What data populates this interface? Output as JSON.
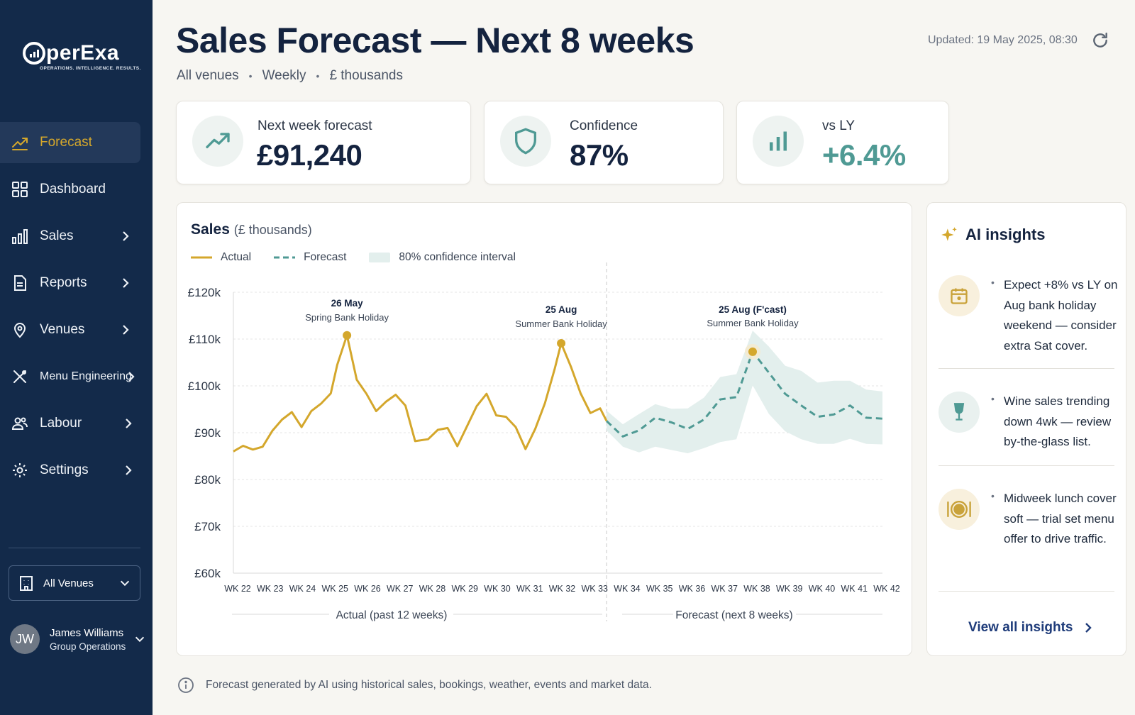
{
  "sidebar": {
    "logo": {
      "text": "perExa",
      "tagline": "OPERATIONS. INTELLIGENCE. RESULTS."
    },
    "items": [
      {
        "label": "Forecast",
        "icon": "trending-up-icon",
        "active": true
      },
      {
        "label": "Dashboard",
        "icon": "grid-icon"
      },
      {
        "label": "Sales",
        "icon": "bar-chart-icon"
      },
      {
        "label": "Reports",
        "icon": "document-icon"
      },
      {
        "label": "Venues",
        "icon": "map-pin-icon"
      },
      {
        "label": "Menu Engineering",
        "icon": "utensils-icon"
      },
      {
        "label": "Labour",
        "icon": "users-icon"
      },
      {
        "label": "Settings",
        "icon": "gear-icon"
      }
    ],
    "venue_select": "All Venues",
    "user": {
      "initials": "JW",
      "name": "James Williams",
      "role": "Group Operations"
    }
  },
  "header": {
    "title": "Sales Forecast — Next 8 weeks",
    "subtitle": [
      "All venues",
      "Weekly",
      "£ thousands"
    ],
    "updated": "Updated: 19 May 2025, 08:30"
  },
  "kpis": [
    {
      "label": "Next week forecast",
      "value": "£91,240",
      "icon": "trending-up-icon"
    },
    {
      "label": "Confidence",
      "value": "87%",
      "icon": "shield-icon"
    },
    {
      "label": "vs LY",
      "value": "+6.4%",
      "icon": "bar-chart-icon"
    }
  ],
  "chart": {
    "title": "Sales",
    "title_unit": "(£ thousands)",
    "legend": [
      "Actual",
      "Forecast",
      "80% confidence interval"
    ],
    "section_actual": "Actual (past 12 weeks)",
    "section_forecast": "Forecast (next 8 weeks)",
    "annotations": [
      {
        "title": "26 May",
        "sub": "Spring Bank Holiday"
      },
      {
        "title": "25 Aug",
        "sub": "Summer Bank Holiday"
      },
      {
        "title": "25 Aug (F'cast)",
        "sub": "Summer Bank Holiday"
      }
    ]
  },
  "chart_data": {
    "type": "line",
    "ylim": [
      60,
      120
    ],
    "yticks": [
      "£120k",
      "£110k",
      "£100k",
      "£90k",
      "£80k",
      "£70k",
      "£60k"
    ],
    "ytick_values": [
      120,
      110,
      100,
      90,
      80,
      70,
      60
    ],
    "categories": [
      "WK 22",
      "WK 23",
      "WK 24",
      "WK 25",
      "WK 26",
      "WK 27",
      "WK 28",
      "WK 29",
      "WK 30",
      "WK 31",
      "WK 32",
      "WK 33",
      "WK 34",
      "WK 35",
      "WK 36",
      "WK 37",
      "WK 38",
      "WK 39",
      "WK 40",
      "WK 41",
      "WK 42"
    ],
    "grid": true,
    "actual": {
      "name": "Actual",
      "x": [
        22,
        22.3,
        22.6,
        22.9,
        23.2,
        23.5,
        23.8,
        24.1,
        24.4,
        24.7,
        25.0,
        25.2,
        25.5,
        25.8,
        26.1,
        26.4,
        26.7,
        27.0,
        27.3,
        27.6,
        28.0,
        28.3,
        28.6,
        28.9,
        29.2,
        29.5,
        29.8,
        30.1,
        30.4,
        30.7,
        31.0,
        31.3,
        31.6,
        31.9,
        32.1,
        32.4,
        32.7,
        33.0,
        33.3,
        33.5
      ],
      "y": [
        86,
        87.2,
        86.4,
        87,
        90.4,
        92.8,
        94.4,
        91.2,
        94.6,
        96.2,
        98.4,
        104.5,
        110.8,
        101.3,
        98.3,
        94.6,
        96.6,
        98.1,
        95.8,
        88.2,
        88.6,
        90.6,
        91,
        87.1,
        91.4,
        95.7,
        98.3,
        93.7,
        93.4,
        91.2,
        86.5,
        90.8,
        96.3,
        103.6,
        109.1,
        104.1,
        98.4,
        94.2,
        95.2,
        92.5
      ]
    },
    "forecast": {
      "name": "Forecast",
      "x": [
        33.5,
        34,
        34.5,
        35,
        35.5,
        36,
        36.5,
        37,
        37.5,
        38,
        38.5,
        39,
        39.5,
        40,
        40.5,
        41,
        41.5,
        42
      ],
      "y": [
        92.5,
        89.2,
        90.5,
        93.2,
        92.2,
        90.8,
        92.8,
        97.1,
        97.6,
        107.3,
        102.8,
        98.3,
        95.8,
        93.4,
        93.9,
        95.8,
        93.2,
        93
      ],
      "lower": [
        90.5,
        87,
        85.8,
        87,
        86.3,
        85.6,
        86.7,
        88,
        88.6,
        100.1,
        94,
        90.3,
        88.6,
        87.6,
        87.6,
        88.7,
        87.6,
        87.5
      ],
      "upper": [
        94.7,
        91.8,
        94,
        96.1,
        95.1,
        95.2,
        97.5,
        101.9,
        102.5,
        111.8,
        108.4,
        104.3,
        103.2,
        100.7,
        101.1,
        101.1,
        99.2,
        98.8
      ]
    },
    "highlights": [
      {
        "x": 25.5,
        "y": 110.8
      },
      {
        "x": 32.1,
        "y": 109.1
      },
      {
        "x": 38.0,
        "y": 107.3
      }
    ]
  },
  "insights": {
    "title": "AI insights",
    "items": [
      {
        "icon": "calendar-icon",
        "text": "Expect +8% vs LY on Aug bank holiday weekend — consider extra Sat cover."
      },
      {
        "icon": "wine-glass-icon",
        "text": "Wine sales trending down 4wk — review by-the-glass list."
      },
      {
        "icon": "plate-icon",
        "text": "Midweek lunch cover soft — trial set menu offer to drive traffic."
      }
    ],
    "link": "View all insights"
  },
  "footnote": "Forecast generated by AI using historical sales, bookings, weather, events and market data.",
  "colors": {
    "sidebar": "#132a4a",
    "accent_gold": "#d4a72c",
    "forecast_teal": "#4f9a94",
    "ci_fill": "#e3efed"
  }
}
